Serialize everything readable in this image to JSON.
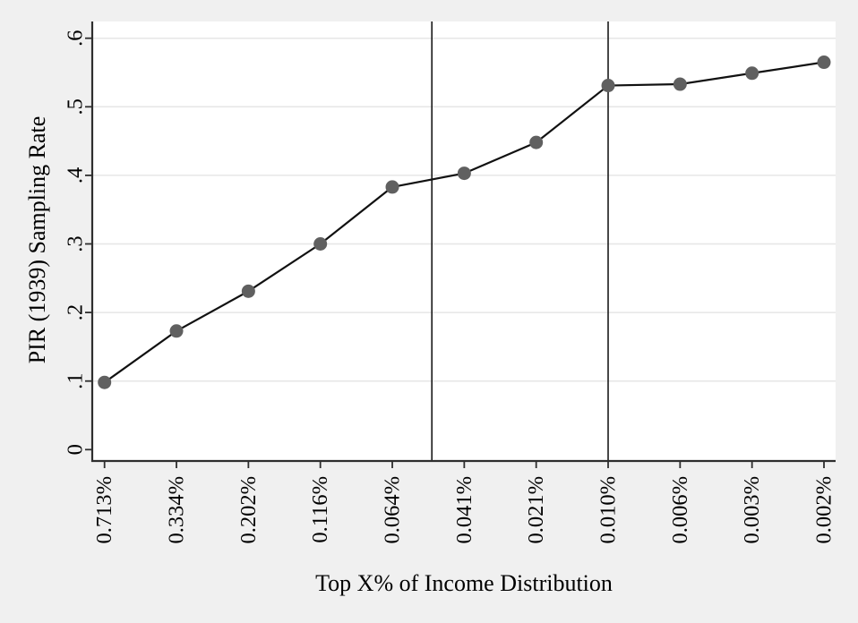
{
  "chart_data": {
    "type": "line",
    "title": "",
    "xlabel": "Top X% of Income Distribution",
    "ylabel": "PIR (1939) Sampling Rate",
    "categories": [
      "0.713%",
      "0.334%",
      "0.202%",
      "0.116%",
      "0.064%",
      "0.041%",
      "0.021%",
      "0.010%",
      "0.006%",
      "0.003%",
      "0.002%"
    ],
    "series": [
      {
        "name": "PIR (1939) Sampling Rate",
        "values": [
          0.098,
          0.173,
          0.231,
          0.3,
          0.383,
          0.403,
          0.448,
          0.531,
          0.533,
          0.549,
          0.565
        ]
      }
    ],
    "ylim": [
      0,
      0.6
    ],
    "y_ticks": [
      0,
      0.1,
      0.2,
      0.3,
      0.4,
      0.5,
      0.6
    ],
    "y_tick_labels": [
      "0",
      ".1",
      ".2",
      ".3",
      ".4",
      ".5",
      ".6"
    ],
    "grid": "horizontal",
    "grid_values": [
      0.1,
      0.2,
      0.3,
      0.4,
      0.5,
      0.6
    ],
    "x_tick_label_rotation_deg": -90,
    "y_tick_label_rotation_deg": -90,
    "legend_position": "none",
    "vertical_reference_lines": [
      {
        "position_index": 4.55,
        "note": "between 0.064% and 0.041%"
      },
      {
        "position_index": 7.0,
        "note": "at 0.010%"
      }
    ],
    "colors": {
      "figure_background": "#f0f0f0",
      "plot_background": "#ffffff",
      "gridline": "#e6e6e6",
      "axis": "#2e2e2e",
      "tick": "#2e2e2e",
      "data_line": "#111111",
      "marker_fill": "#606060",
      "reference_line": "#1a1a1a",
      "text": "#000000"
    }
  }
}
